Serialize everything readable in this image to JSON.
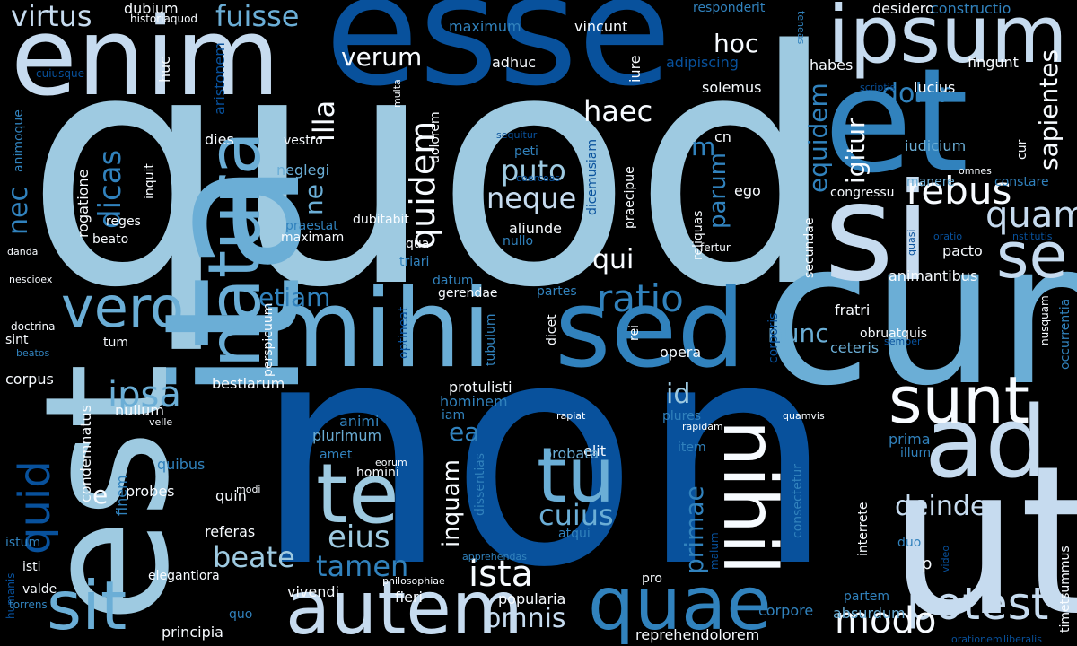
{
  "words": [
    {
      "text": "quod",
      "color": "#9ecae1"
    },
    {
      "text": "non",
      "color": "#08519c"
    },
    {
      "text": "esse",
      "color": "#08519c"
    },
    {
      "text": "enim",
      "color": "#c6dbef"
    },
    {
      "text": "et",
      "color": "#3182bd"
    },
    {
      "text": "cum",
      "color": "#6baed6"
    },
    {
      "text": "ut",
      "color": "#c6dbef"
    },
    {
      "text": "si",
      "color": "#c6dbef"
    },
    {
      "text": "ita",
      "color": "#6baed6"
    },
    {
      "text": "est",
      "color": "#9ecae1"
    },
    {
      "text": "mihi",
      "color": "#6baed6"
    },
    {
      "text": "sed",
      "color": "#3182bd"
    },
    {
      "text": "ipsum",
      "color": "#c6dbef"
    },
    {
      "text": "ad",
      "color": "#c6dbef"
    },
    {
      "text": "natura",
      "color": "#6baed6"
    },
    {
      "text": "autem",
      "color": "#c6dbef"
    },
    {
      "text": "quae",
      "color": "#3182bd"
    },
    {
      "text": "tu",
      "color": "#6baed6"
    },
    {
      "text": "te",
      "color": "#9ecae1"
    },
    {
      "text": "sunt",
      "color": "#f7fbff"
    },
    {
      "text": "nihil",
      "color": "#f7fbff"
    },
    {
      "text": "sit",
      "color": "#6baed6"
    },
    {
      "text": "vero",
      "color": "#6baed6"
    },
    {
      "text": "potest",
      "color": "#c6dbef"
    },
    {
      "text": "se",
      "color": "#c6dbef"
    },
    {
      "text": "quam",
      "color": "#c6dbef"
    },
    {
      "text": "rebus",
      "color": "#f7fbff"
    },
    {
      "text": "modo",
      "color": "#f7fbff"
    },
    {
      "text": "ratio",
      "color": "#3182bd"
    },
    {
      "text": "quid",
      "color": "#08519c"
    },
    {
      "text": "ipsa",
      "color": "#6baed6"
    },
    {
      "text": "ista",
      "color": "#f7fbff"
    },
    {
      "text": "virtus",
      "color": "#c6dbef"
    },
    {
      "text": "fuisse",
      "color": "#6baed6"
    },
    {
      "text": "quidem",
      "color": "#f7fbff"
    },
    {
      "text": "neque",
      "color": "#c6dbef"
    },
    {
      "text": "puto",
      "color": "#9ecae1"
    },
    {
      "text": "cuius",
      "color": "#6baed6"
    },
    {
      "text": "eius",
      "color": "#9ecae1"
    },
    {
      "text": "tamen",
      "color": "#3182bd"
    },
    {
      "text": "beate",
      "color": "#9ecae1"
    },
    {
      "text": "omnis",
      "color": "#c6dbef"
    },
    {
      "text": "deinde",
      "color": "#c6dbef"
    },
    {
      "text": "dicas",
      "color": "#3182bd"
    },
    {
      "text": "nec",
      "color": "#3182bd"
    },
    {
      "text": "illa",
      "color": "#f7fbff"
    },
    {
      "text": "haec",
      "color": "#f7fbff"
    },
    {
      "text": "hoc",
      "color": "#f7fbff"
    },
    {
      "text": "verum",
      "color": "#f7fbff"
    },
    {
      "text": "dolor",
      "color": "#3182bd"
    },
    {
      "text": "sapientes",
      "color": "#f7fbff"
    },
    {
      "text": "igitur",
      "color": "#f7fbff"
    },
    {
      "text": "equidem",
      "color": "#3182bd"
    },
    {
      "text": "parum",
      "color": "#3182bd"
    },
    {
      "text": "nunc",
      "color": "#6baed6"
    },
    {
      "text": "etiam",
      "color": "#3182bd"
    },
    {
      "text": "primae",
      "color": "#3182bd"
    },
    {
      "text": "inquam",
      "color": "#f7fbff"
    },
    {
      "text": "qui",
      "color": "#f7fbff"
    },
    {
      "text": "id",
      "color": "#9ecae1"
    },
    {
      "text": "ea",
      "color": "#3182bd"
    },
    {
      "text": "m",
      "color": "#3182bd"
    },
    {
      "text": "ne",
      "color": "#6baed6"
    },
    {
      "text": "e",
      "color": "#f7fbff"
    },
    {
      "text": "p",
      "color": "#f7fbff"
    },
    {
      "text": "dubium",
      "color": "#f7fbff"
    },
    {
      "text": "historiaquod",
      "color": "#f7fbff"
    },
    {
      "text": "huc",
      "color": "#f7fbff"
    },
    {
      "text": "maximum",
      "color": "#3182bd"
    },
    {
      "text": "vincunt",
      "color": "#f7fbff"
    },
    {
      "text": "adhuc",
      "color": "#f7fbff"
    },
    {
      "text": "responderit",
      "color": "#3182bd"
    },
    {
      "text": "adipiscing",
      "color": "#08519c"
    },
    {
      "text": "iure",
      "color": "#f7fbff"
    },
    {
      "text": "desidero",
      "color": "#f7fbff"
    },
    {
      "text": "constructio",
      "color": "#3182bd"
    },
    {
      "text": "fingunt",
      "color": "#f7fbff"
    },
    {
      "text": "habes",
      "color": "#f7fbff"
    },
    {
      "text": "solemus",
      "color": "#f7fbff"
    },
    {
      "text": "lucius",
      "color": "#f7fbff"
    },
    {
      "text": "teneas",
      "color": "#3182bd"
    },
    {
      "text": "multa",
      "color": "#f7fbff"
    },
    {
      "text": "aristonem",
      "color": "#08519c"
    },
    {
      "text": "vestro",
      "color": "#f7fbff"
    },
    {
      "text": "dolorem",
      "color": "#f7fbff"
    },
    {
      "text": "dies",
      "color": "#f7fbff"
    },
    {
      "text": "animoque",
      "color": "#3182bd"
    },
    {
      "text": "cuiusque",
      "color": "#08519c"
    },
    {
      "text": "inquit",
      "color": "#f7fbff"
    },
    {
      "text": "rogatione",
      "color": "#f7fbff"
    },
    {
      "text": "neglegi",
      "color": "#6baed6"
    },
    {
      "text": "dubitabit",
      "color": "#f7fbff"
    },
    {
      "text": "sequitur",
      "color": "#08519c"
    },
    {
      "text": "dicemusiam",
      "color": "#08519c"
    },
    {
      "text": "peti",
      "color": "#3182bd"
    },
    {
      "text": "coerceas",
      "color": "#08519c"
    },
    {
      "text": "praecipue",
      "color": "#f7fbff"
    },
    {
      "text": "cn",
      "color": "#f7fbff"
    },
    {
      "text": "ego",
      "color": "#f7fbff"
    },
    {
      "text": "reliquas",
      "color": "#f7fbff"
    },
    {
      "text": "fertur",
      "color": "#f7fbff"
    },
    {
      "text": "iudicium",
      "color": "#6baed6"
    },
    {
      "text": "scriptis",
      "color": "#08519c"
    },
    {
      "text": "cur",
      "color": "#f7fbff"
    },
    {
      "text": "omnes",
      "color": "#f7fbff"
    },
    {
      "text": "manere",
      "color": "#6baed6"
    },
    {
      "text": "constare",
      "color": "#3182bd"
    },
    {
      "text": "congressu",
      "color": "#f7fbff"
    },
    {
      "text": "secundae",
      "color": "#f7fbff"
    },
    {
      "text": "quasi",
      "color": "#08519c"
    },
    {
      "text": "oratio",
      "color": "#08519c"
    },
    {
      "text": "institutis",
      "color": "#08519c"
    },
    {
      "text": "pacto",
      "color": "#f7fbff"
    },
    {
      "text": "animantibus",
      "color": "#f7fbff"
    },
    {
      "text": "fratri",
      "color": "#f7fbff"
    },
    {
      "text": "ceteris",
      "color": "#6baed6"
    },
    {
      "text": "obruatquis",
      "color": "#f7fbff"
    },
    {
      "text": "nusquam",
      "color": "#f7fbff"
    },
    {
      "text": "semper",
      "color": "#08519c"
    },
    {
      "text": "occurrentia",
      "color": "#3182bd"
    },
    {
      "text": "reges",
      "color": "#f7fbff"
    },
    {
      "text": "beato",
      "color": "#f7fbff"
    },
    {
      "text": "praestat",
      "color": "#3182bd"
    },
    {
      "text": "maximam",
      "color": "#f7fbff"
    },
    {
      "text": "aliunde",
      "color": "#f7fbff"
    },
    {
      "text": "nullo",
      "color": "#3182bd"
    },
    {
      "text": "qua",
      "color": "#f7fbff"
    },
    {
      "text": "triari",
      "color": "#3182bd"
    },
    {
      "text": "datum",
      "color": "#3182bd"
    },
    {
      "text": "partes",
      "color": "#3182bd"
    },
    {
      "text": "gerendae",
      "color": "#f7fbff"
    },
    {
      "text": "danda",
      "color": "#f7fbff"
    },
    {
      "text": "nescioex",
      "color": "#f7fbff"
    },
    {
      "text": "doctrina",
      "color": "#f7fbff"
    },
    {
      "text": "sint",
      "color": "#f7fbff"
    },
    {
      "text": "beatos",
      "color": "#3182bd"
    },
    {
      "text": "tum",
      "color": "#f7fbff"
    },
    {
      "text": "perspicuum",
      "color": "#f7fbff"
    },
    {
      "text": "optineat",
      "color": "#08519c"
    },
    {
      "text": "tubulum",
      "color": "#3182bd"
    },
    {
      "text": "dicet",
      "color": "#f7fbff"
    },
    {
      "text": "rei",
      "color": "#f7fbff"
    },
    {
      "text": "opera",
      "color": "#f7fbff"
    },
    {
      "text": "corporis",
      "color": "#08519c"
    },
    {
      "text": "corpus",
      "color": "#f7fbff"
    },
    {
      "text": "bestiarum",
      "color": "#f7fbff"
    },
    {
      "text": "protulisti",
      "color": "#f7fbff"
    },
    {
      "text": "hominem",
      "color": "#3182bd"
    },
    {
      "text": "condemnatus",
      "color": "#f7fbff"
    },
    {
      "text": "nullum",
      "color": "#f7fbff"
    },
    {
      "text": "velle",
      "color": "#f7fbff"
    },
    {
      "text": "animi",
      "color": "#3182bd"
    },
    {
      "text": "plurimum",
      "color": "#6baed6"
    },
    {
      "text": "iam",
      "color": "#3182bd"
    },
    {
      "text": "rapiat",
      "color": "#f7fbff"
    },
    {
      "text": "rapidam",
      "color": "#f7fbff"
    },
    {
      "text": "plures",
      "color": "#3182bd"
    },
    {
      "text": "quamvis",
      "color": "#f7fbff"
    },
    {
      "text": "item",
      "color": "#3182bd"
    },
    {
      "text": "elit",
      "color": "#f7fbff"
    },
    {
      "text": "probata",
      "color": "#6baed6"
    },
    {
      "text": "prima",
      "color": "#3182bd"
    },
    {
      "text": "illum",
      "color": "#3182bd"
    },
    {
      "text": "quibus",
      "color": "#3182bd"
    },
    {
      "text": "amet",
      "color": "#3182bd"
    },
    {
      "text": "eorum",
      "color": "#f7fbff"
    },
    {
      "text": "homini",
      "color": "#f7fbff"
    },
    {
      "text": "modi",
      "color": "#f7fbff"
    },
    {
      "text": "finem",
      "color": "#3182bd"
    },
    {
      "text": "probes",
      "color": "#f7fbff"
    },
    {
      "text": "quin",
      "color": "#f7fbff"
    },
    {
      "text": "dissentias",
      "color": "#3182bd"
    },
    {
      "text": "consectetur",
      "color": "#3182bd"
    },
    {
      "text": "interrete",
      "color": "#f7fbff"
    },
    {
      "text": "duo",
      "color": "#3182bd"
    },
    {
      "text": "atqui",
      "color": "#3182bd"
    },
    {
      "text": "referas",
      "color": "#f7fbff"
    },
    {
      "text": "istum",
      "color": "#3182bd"
    },
    {
      "text": "isti",
      "color": "#f7fbff"
    },
    {
      "text": "humanis",
      "color": "#08519c"
    },
    {
      "text": "valde",
      "color": "#f7fbff"
    },
    {
      "text": "elegantiora",
      "color": "#f7fbff"
    },
    {
      "text": "philosophiae",
      "color": "#f7fbff"
    },
    {
      "text": "apprehendas",
      "color": "#3182bd"
    },
    {
      "text": "malum",
      "color": "#08519c"
    },
    {
      "text": "video",
      "color": "#08519c"
    },
    {
      "text": "timetsummus",
      "color": "#f7fbff"
    },
    {
      "text": "pro",
      "color": "#f7fbff"
    },
    {
      "text": "partem",
      "color": "#3182bd"
    },
    {
      "text": "corpore",
      "color": "#3182bd"
    },
    {
      "text": "vivendi",
      "color": "#f7fbff"
    },
    {
      "text": "fieri",
      "color": "#f7fbff"
    },
    {
      "text": "popularia",
      "color": "#f7fbff"
    },
    {
      "text": "absurdum",
      "color": "#6baed6"
    },
    {
      "text": "torrens",
      "color": "#3182bd"
    },
    {
      "text": "quo",
      "color": "#3182bd"
    },
    {
      "text": "principia",
      "color": "#f7fbff"
    },
    {
      "text": "reprehendolorem",
      "color": "#f7fbff"
    },
    {
      "text": "orationem",
      "color": "#08519c"
    },
    {
      "text": "liberalis",
      "color": "#08519c"
    }
  ]
}
